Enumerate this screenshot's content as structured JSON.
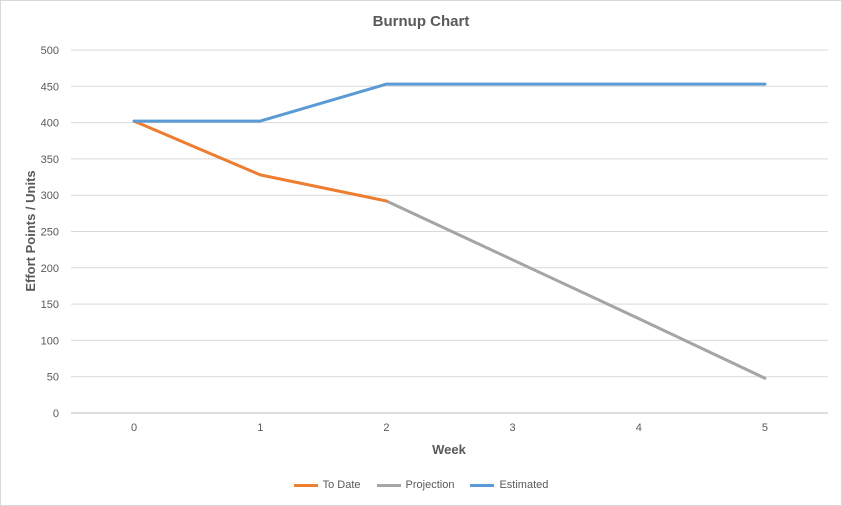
{
  "chart_data": {
    "type": "line",
    "title": "Burnup Chart",
    "xlabel": "Week",
    "ylabel": "Effort Points / Units",
    "x": [
      0,
      1,
      2,
      3,
      4,
      5
    ],
    "ylim": [
      0,
      500
    ],
    "yticks": [
      0,
      50,
      100,
      150,
      200,
      250,
      300,
      350,
      400,
      450,
      500
    ],
    "grid": true,
    "legend_position": "bottom",
    "series": [
      {
        "name": "To Date",
        "color": "#ED7D31",
        "x": [
          0,
          1,
          2
        ],
        "values": [
          402,
          328,
          292
        ]
      },
      {
        "name": "Projection",
        "color": "#A5A5A5",
        "x": [
          2,
          3,
          4,
          5
        ],
        "values": [
          292,
          211,
          130,
          48
        ]
      },
      {
        "name": "Estimated",
        "color": "#5B9BD5",
        "x": [
          0,
          1,
          2,
          3,
          4,
          5
        ],
        "values": [
          402,
          402,
          453,
          453,
          453,
          453
        ]
      }
    ]
  }
}
